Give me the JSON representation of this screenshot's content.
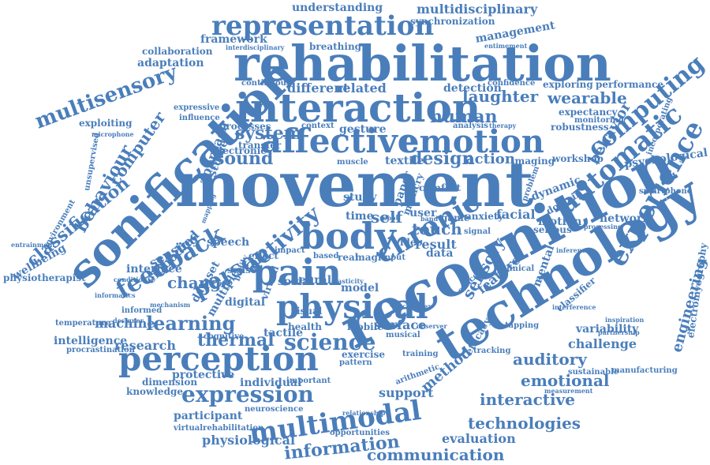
{
  "color": "#4a7ebb",
  "words": [
    "movement",
    "rehabilitation",
    "recognition",
    "technology",
    "sonification",
    "interaction",
    "body",
    "pain",
    "physical",
    "perception",
    "affective",
    "emotion",
    "experience",
    "automatic",
    "chronic",
    "representation",
    "multimodal",
    "expression",
    "science",
    "feedback",
    "person",
    "activity",
    "computing",
    "behaviour",
    "behavior",
    "human",
    "laughter",
    "wearable",
    "multisensory",
    "classification",
    "computer",
    "learning",
    "research",
    "thermal",
    "information",
    "communication",
    "technologies",
    "evaluation",
    "physiological",
    "interactive",
    "emotional",
    "auditory",
    "sensory",
    "mental",
    "design",
    "action",
    "touch",
    "sound",
    "system",
    "self",
    "change",
    "machine",
    "sensing",
    "embodied",
    "dataset",
    "engineering",
    "psychological",
    "electromyography",
    "network",
    "challenge",
    "variability",
    "motion",
    "feature",
    "social",
    "model",
    "support",
    "participant",
    "protective",
    "knowledge",
    "dimension",
    "intelligence",
    "procrastination",
    "temperature",
    "wellbeing",
    "physiotherapist",
    "environment",
    "entrainment",
    "adaptation",
    "collaboration",
    "framework",
    "understanding",
    "multidisciplinary",
    "synchronization",
    "management",
    "breathing",
    "interdisciplinary",
    "entimement",
    "detection",
    "different",
    "related",
    "continuous",
    "performance",
    "exploring",
    "confidence",
    "robustness",
    "analysis",
    "therapy",
    "imaging",
    "textile",
    "gesture",
    "context",
    "processes",
    "transfer",
    "electronic",
    "studies",
    "approach",
    "expressive",
    "influence",
    "exploiting",
    "microphone",
    "unsupervised",
    "expectancy",
    "monitoring",
    "incorporating",
    "smartphone",
    "workshop",
    "dynamic",
    "domain",
    "facial",
    "problem",
    "study",
    "paper",
    "user",
    "time",
    "result",
    "game",
    "anxiety",
    "serious",
    "classifier",
    "mobile",
    "health",
    "surface",
    "tactile",
    "visual",
    "neural",
    "digital",
    "interface",
    "multiple",
    "speech",
    "impact",
    "virtual",
    "real",
    "based",
    "magic",
    "input",
    "data",
    "video",
    "clinical",
    "method",
    "exercise",
    "pattern",
    "training",
    "musical",
    "individual",
    "important",
    "cognitive",
    "arithmetic",
    "neuroscience",
    "relationship",
    "virtualrehabilitation",
    "opportunities",
    "manufacturing",
    "sustainable",
    "measurement",
    "tracking",
    "interference",
    "partnership",
    "inspiration",
    "efficacy",
    "tapping",
    "informed",
    "designer",
    "mechanism",
    "condition",
    "informatics",
    "muscle",
    "mimicry",
    "comfort",
    "robot",
    "band",
    "concept",
    "signal",
    "processing",
    "inference",
    "elasticity",
    "observer",
    "complex",
    "bodily",
    "mapping",
    "sense",
    "effect"
  ]
}
